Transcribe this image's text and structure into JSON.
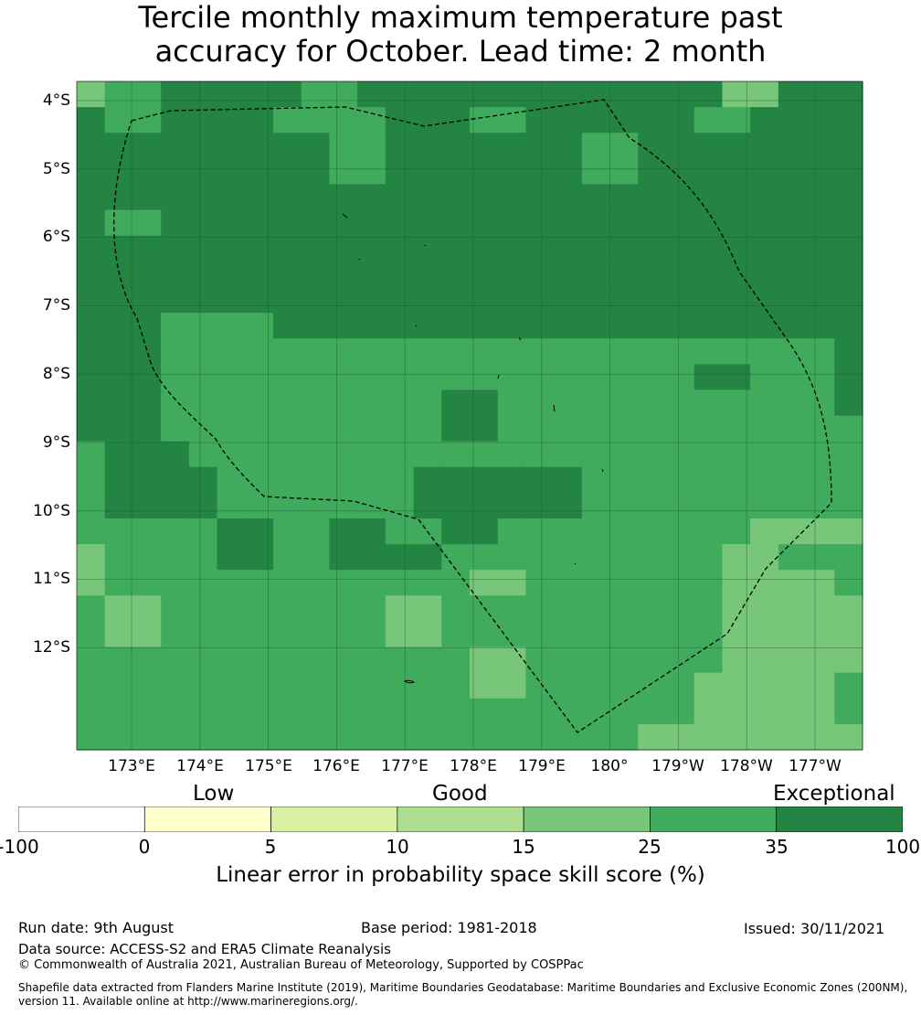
{
  "title_line1": "Tercile monthly maximum temperature past",
  "title_line2": "accuracy for October. Lead time: 2 month",
  "lat_labels": [
    "4°S",
    "5°S",
    "6°S",
    "7°S",
    "8°S",
    "9°S",
    "10°S",
    "11°S",
    "12°S"
  ],
  "lon_labels": [
    "173°E",
    "174°E",
    "175°E",
    "176°E",
    "177°E",
    "178°E",
    "179°E",
    "180°",
    "179°W",
    "178°W",
    "177°W"
  ],
  "categories": {
    "low": "Low",
    "good": "Good",
    "exceptional": "Exceptional"
  },
  "colorbar": {
    "ticks": [
      "-100",
      "0",
      "5",
      "10",
      "15",
      "25",
      "35",
      "100"
    ],
    "colors": [
      "#ffffff",
      "#ffffcc",
      "#d9f0a3",
      "#addd8e",
      "#78c679",
      "#41ab5d",
      "#238443"
    ],
    "label": "Linear error in probability space skill score (%)"
  },
  "grid": {
    "rows": [
      [
        4,
        5,
        5,
        6,
        6,
        6,
        6,
        6,
        5,
        5,
        6,
        6,
        6,
        6,
        6,
        6,
        6,
        6,
        6,
        6,
        6,
        6,
        6,
        4,
        4,
        6,
        6,
        6
      ],
      [
        6,
        5,
        5,
        6,
        6,
        6,
        6,
        5,
        5,
        5,
        5,
        6,
        6,
        6,
        5,
        5,
        6,
        6,
        6,
        6,
        6,
        6,
        5,
        5,
        6,
        6,
        6,
        6
      ],
      [
        6,
        6,
        6,
        6,
        6,
        6,
        6,
        6,
        6,
        5,
        5,
        6,
        6,
        6,
        6,
        6,
        6,
        6,
        5,
        5,
        6,
        6,
        6,
        6,
        6,
        6,
        6,
        6
      ],
      [
        6,
        6,
        6,
        6,
        6,
        6,
        6,
        6,
        6,
        5,
        5,
        6,
        6,
        6,
        6,
        6,
        6,
        6,
        5,
        5,
        6,
        6,
        6,
        6,
        6,
        6,
        6,
        6
      ],
      [
        6,
        6,
        6,
        6,
        6,
        6,
        6,
        6,
        6,
        6,
        6,
        6,
        6,
        6,
        6,
        6,
        6,
        6,
        6,
        6,
        6,
        6,
        6,
        6,
        6,
        6,
        6,
        6
      ],
      [
        6,
        5,
        5,
        6,
        6,
        6,
        6,
        6,
        6,
        6,
        6,
        6,
        6,
        6,
        6,
        6,
        6,
        6,
        6,
        6,
        6,
        6,
        6,
        6,
        6,
        6,
        6,
        6
      ],
      [
        6,
        6,
        6,
        6,
        6,
        6,
        6,
        6,
        6,
        6,
        6,
        6,
        6,
        6,
        6,
        6,
        6,
        6,
        6,
        6,
        6,
        6,
        6,
        6,
        6,
        6,
        6,
        6
      ],
      [
        6,
        6,
        6,
        6,
        6,
        6,
        6,
        6,
        6,
        6,
        6,
        6,
        6,
        6,
        6,
        6,
        6,
        6,
        6,
        6,
        6,
        6,
        6,
        6,
        6,
        6,
        6,
        6
      ],
      [
        6,
        6,
        6,
        6,
        6,
        6,
        6,
        6,
        6,
        6,
        6,
        6,
        6,
        6,
        6,
        6,
        6,
        6,
        6,
        6,
        6,
        6,
        6,
        6,
        6,
        6,
        6,
        6
      ],
      [
        6,
        6,
        6,
        5,
        5,
        5,
        5,
        6,
        6,
        6,
        6,
        6,
        6,
        6,
        6,
        6,
        6,
        6,
        6,
        6,
        6,
        6,
        6,
        6,
        6,
        6,
        6,
        6
      ],
      [
        6,
        6,
        6,
        5,
        5,
        5,
        5,
        5,
        5,
        5,
        5,
        5,
        5,
        5,
        5,
        5,
        5,
        5,
        5,
        5,
        5,
        5,
        5,
        5,
        5,
        5,
        5,
        6
      ],
      [
        6,
        6,
        6,
        5,
        5,
        5,
        5,
        5,
        5,
        5,
        5,
        5,
        5,
        5,
        5,
        5,
        5,
        5,
        5,
        5,
        5,
        5,
        6,
        6,
        5,
        5,
        5,
        6
      ],
      [
        6,
        6,
        6,
        5,
        5,
        5,
        5,
        5,
        5,
        5,
        5,
        5,
        5,
        6,
        6,
        5,
        5,
        5,
        5,
        5,
        5,
        5,
        5,
        5,
        5,
        5,
        5,
        6
      ],
      [
        6,
        6,
        6,
        5,
        5,
        5,
        5,
        5,
        5,
        5,
        5,
        5,
        5,
        6,
        6,
        5,
        5,
        5,
        5,
        5,
        5,
        5,
        5,
        5,
        5,
        5,
        5,
        5
      ],
      [
        5,
        6,
        6,
        6,
        5,
        5,
        5,
        5,
        5,
        5,
        5,
        5,
        5,
        5,
        5,
        5,
        5,
        5,
        5,
        5,
        5,
        5,
        5,
        5,
        5,
        5,
        5,
        5
      ],
      [
        5,
        6,
        6,
        6,
        6,
        5,
        5,
        5,
        5,
        5,
        5,
        5,
        6,
        6,
        6,
        6,
        6,
        6,
        5,
        5,
        5,
        5,
        5,
        5,
        5,
        5,
        5,
        5
      ],
      [
        5,
        6,
        6,
        6,
        6,
        5,
        5,
        5,
        5,
        5,
        5,
        5,
        6,
        6,
        6,
        6,
        6,
        6,
        5,
        5,
        5,
        5,
        5,
        5,
        5,
        5,
        5,
        5
      ],
      [
        5,
        5,
        5,
        5,
        5,
        6,
        6,
        5,
        5,
        6,
        6,
        5,
        5,
        6,
        6,
        5,
        5,
        5,
        5,
        5,
        5,
        5,
        5,
        5,
        4,
        4,
        4,
        4
      ],
      [
        4,
        5,
        5,
        5,
        5,
        6,
        6,
        5,
        5,
        6,
        6,
        6,
        6,
        5,
        5,
        5,
        5,
        5,
        5,
        5,
        5,
        5,
        5,
        4,
        4,
        5,
        5,
        5
      ],
      [
        4,
        5,
        5,
        5,
        5,
        5,
        5,
        5,
        5,
        5,
        5,
        5,
        5,
        5,
        4,
        4,
        5,
        5,
        5,
        5,
        5,
        5,
        5,
        4,
        4,
        4,
        4,
        5
      ],
      [
        5,
        4,
        4,
        5,
        5,
        5,
        5,
        5,
        5,
        5,
        5,
        4,
        4,
        5,
        5,
        5,
        5,
        5,
        5,
        5,
        5,
        5,
        5,
        4,
        4,
        4,
        4,
        4
      ],
      [
        5,
        4,
        4,
        5,
        5,
        5,
        5,
        5,
        5,
        5,
        5,
        4,
        4,
        5,
        5,
        5,
        5,
        5,
        5,
        5,
        5,
        5,
        5,
        4,
        4,
        4,
        4,
        4
      ],
      [
        5,
        5,
        5,
        5,
        5,
        5,
        5,
        5,
        5,
        5,
        5,
        5,
        5,
        5,
        4,
        4,
        5,
        5,
        5,
        5,
        5,
        5,
        5,
        4,
        4,
        4,
        4,
        4
      ],
      [
        5,
        5,
        5,
        5,
        5,
        5,
        5,
        5,
        5,
        5,
        5,
        5,
        5,
        5,
        4,
        4,
        5,
        5,
        5,
        5,
        5,
        5,
        4,
        4,
        4,
        4,
        4,
        5
      ],
      [
        5,
        5,
        5,
        5,
        5,
        5,
        5,
        5,
        5,
        5,
        5,
        5,
        5,
        5,
        5,
        5,
        5,
        5,
        5,
        5,
        5,
        5,
        4,
        4,
        4,
        4,
        4,
        5
      ],
      [
        5,
        5,
        5,
        5,
        5,
        5,
        5,
        5,
        5,
        5,
        5,
        5,
        5,
        5,
        5,
        5,
        5,
        5,
        5,
        5,
        4,
        4,
        4,
        4,
        4,
        4,
        4,
        4
      ]
    ]
  },
  "footer": {
    "run_date": "Run date: 9th August",
    "base_period": "Base period: 1981-2018",
    "issued": "Issued: 30/11/2021",
    "data_source": "Data source: ACCESS-S2 and ERA5 Climate Reanalysis",
    "copyright": "© Commonwealth of Australia 2021, Australian Bureau of Meteorology, Supported by COSPPac",
    "shapefile_line1": "Shapefile data extracted from Flanders Marine Institute (2019), Maritime Boundaries Geodatabase: Maritime Boundaries and Exclusive Economic Zones (200NM),",
    "shapefile_line2": "version 11. Available online at http://www.marineregions.org/."
  }
}
